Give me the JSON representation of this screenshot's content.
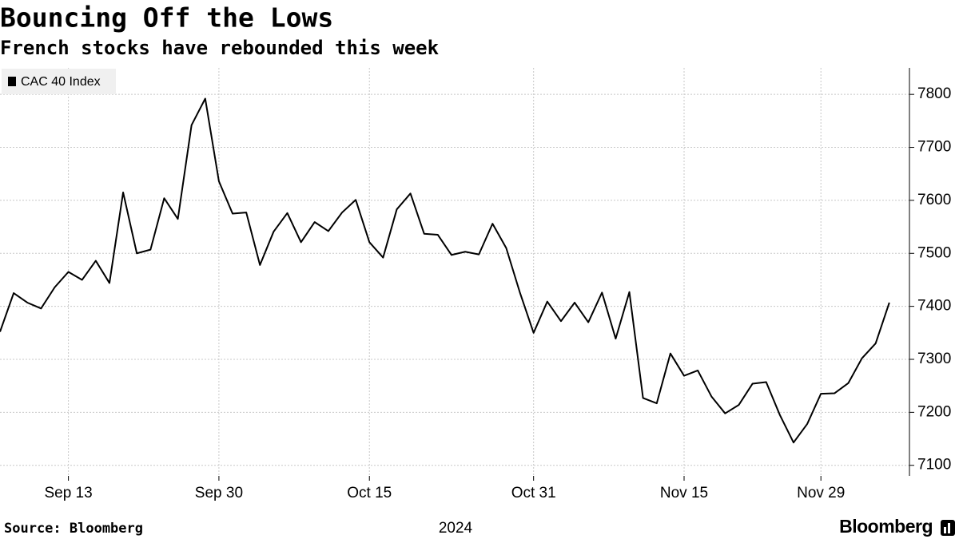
{
  "chart_data": {
    "type": "line",
    "title": "Bouncing Off the Lows",
    "subtitle": "French stocks have rebounded this week",
    "xlabel": "2024",
    "source": "Source: Bloomberg",
    "logo": "Bloomberg",
    "x": [
      "2024-09-06",
      "2024-09-09",
      "2024-09-10",
      "2024-09-11",
      "2024-09-12",
      "2024-09-13",
      "2024-09-16",
      "2024-09-17",
      "2024-09-18",
      "2024-09-19",
      "2024-09-20",
      "2024-09-23",
      "2024-09-24",
      "2024-09-25",
      "2024-09-26",
      "2024-09-27",
      "2024-09-30",
      "2024-10-01",
      "2024-10-02",
      "2024-10-03",
      "2024-10-04",
      "2024-10-07",
      "2024-10-08",
      "2024-10-09",
      "2024-10-10",
      "2024-10-11",
      "2024-10-14",
      "2024-10-15",
      "2024-10-16",
      "2024-10-17",
      "2024-10-18",
      "2024-10-21",
      "2024-10-22",
      "2024-10-23",
      "2024-10-24",
      "2024-10-25",
      "2024-10-28",
      "2024-10-29",
      "2024-10-30",
      "2024-10-31",
      "2024-11-01",
      "2024-11-04",
      "2024-11-05",
      "2024-11-06",
      "2024-11-07",
      "2024-11-08",
      "2024-11-11",
      "2024-11-12",
      "2024-11-13",
      "2024-11-14",
      "2024-11-15",
      "2024-11-18",
      "2024-11-19",
      "2024-11-20",
      "2024-11-21",
      "2024-11-22",
      "2024-11-25",
      "2024-11-26",
      "2024-11-27",
      "2024-11-28",
      "2024-11-29",
      "2024-12-02",
      "2024-12-03",
      "2024-12-04",
      "2024-12-05",
      "2024-12-06"
    ],
    "series": [
      {
        "name": "CAC 40 Index",
        "color": "#000000",
        "values": [
          7352,
          7425,
          7407,
          7396,
          7436,
          7465,
          7450,
          7486,
          7444,
          7615,
          7500,
          7507,
          7604,
          7565,
          7742,
          7792,
          7636,
          7575,
          7577,
          7478,
          7541,
          7576,
          7521,
          7559,
          7542,
          7577,
          7601,
          7521,
          7492,
          7583,
          7613,
          7537,
          7535,
          7497,
          7503,
          7498,
          7556,
          7510,
          7426,
          7350,
          7409,
          7372,
          7407,
          7370,
          7426,
          7339,
          7427,
          7227,
          7217,
          7311,
          7269,
          7279,
          7230,
          7198,
          7214,
          7254,
          7257,
          7195,
          7143,
          7178,
          7235,
          7236,
          7255,
          7302,
          7330,
          7407
        ]
      }
    ],
    "xticks": [
      {
        "value": "2024-09-13",
        "label": "Sep 13"
      },
      {
        "value": "2024-09-30",
        "label": "Sep 30"
      },
      {
        "value": "2024-10-15",
        "label": "Oct 15"
      },
      {
        "value": "2024-10-31",
        "label": "Oct 31"
      },
      {
        "value": "2024-11-15",
        "label": "Nov 15"
      },
      {
        "value": "2024-11-29",
        "label": "Nov 29"
      }
    ],
    "ylim": [
      7080,
      7850
    ],
    "yticks": [
      7100,
      7200,
      7300,
      7400,
      7500,
      7600,
      7700,
      7800
    ],
    "grid": true,
    "legend": "upper left"
  }
}
